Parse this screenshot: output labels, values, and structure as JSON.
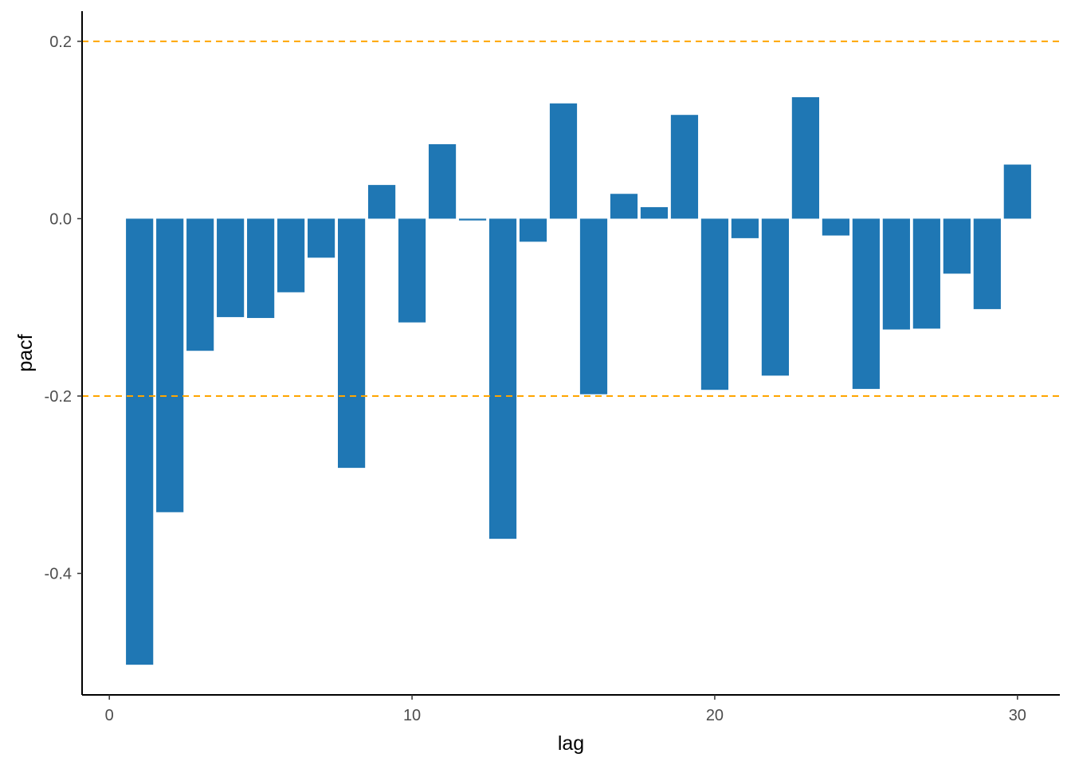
{
  "chart_data": {
    "type": "bar",
    "title": "",
    "xlabel": "lag",
    "ylabel": "pacf",
    "x": [
      1,
      2,
      3,
      4,
      5,
      6,
      7,
      8,
      9,
      10,
      11,
      12,
      13,
      14,
      15,
      16,
      17,
      18,
      19,
      20,
      21,
      22,
      23,
      24,
      25,
      26,
      27,
      28,
      29,
      30
    ],
    "values": [
      -0.503,
      -0.331,
      -0.149,
      -0.111,
      -0.112,
      -0.083,
      -0.044,
      -0.281,
      0.038,
      -0.117,
      0.084,
      -0.002,
      -0.361,
      -0.026,
      0.13,
      -0.198,
      0.028,
      0.013,
      0.117,
      -0.193,
      -0.022,
      -0.177,
      0.137,
      -0.019,
      -0.192,
      -0.125,
      -0.124,
      -0.062,
      -0.102,
      0.061
    ],
    "xlim": [
      -0.9,
      31.4
    ],
    "ylim": [
      -0.537,
      0.234
    ],
    "xticks": [
      0,
      10,
      20,
      30
    ],
    "xtick_labels": [
      "0",
      "10",
      "20",
      "30"
    ],
    "yticks": [
      0.2,
      0.0,
      -0.2,
      -0.4
    ],
    "ytick_labels": [
      "0.2",
      "0.0",
      "-0.2",
      "-0.4"
    ],
    "bar_width": 0.9,
    "reference_lines": [
      0.2,
      -0.2
    ],
    "reference_line_style": "dashed",
    "grid": false,
    "legend": "none",
    "colors": {
      "bar": "#1f77b4",
      "reference_line": "#ffa500",
      "axis": "#000000",
      "tick_label": "#4d4d4d"
    }
  }
}
